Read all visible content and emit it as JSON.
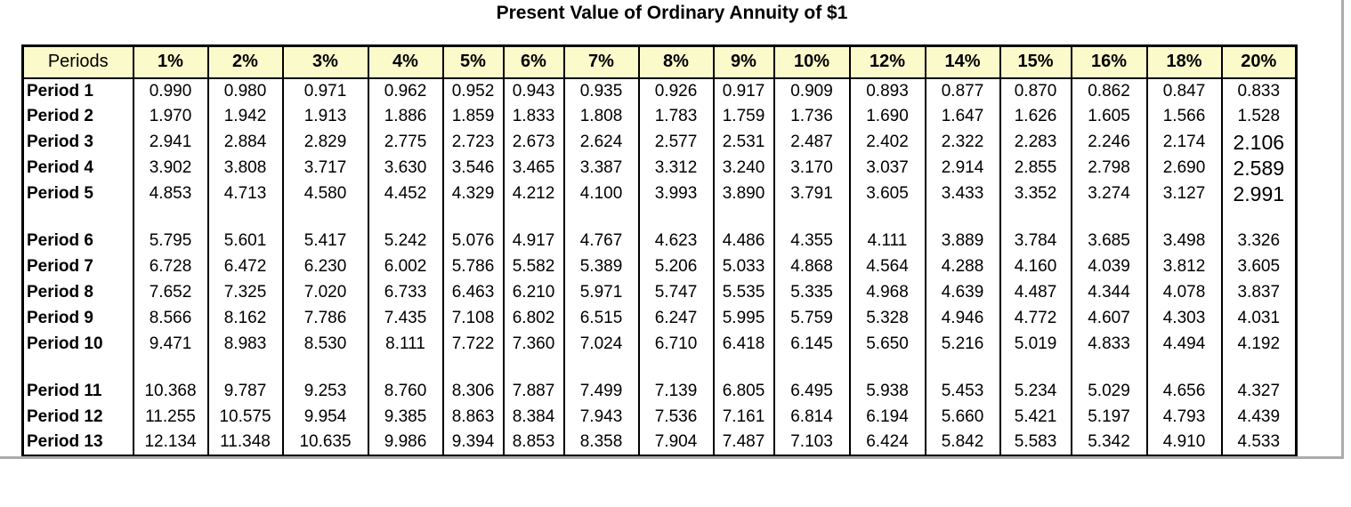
{
  "title": "Present Value of Ordinary Annuity of $1",
  "colors": {
    "header_bg": "#FBFACB",
    "grid_border": "#000000",
    "frame_line": "#ABABAB"
  },
  "table": {
    "header": [
      "Periods",
      "1%",
      "2%",
      "3%",
      "4%",
      "5%",
      "6%",
      "7%",
      "8%",
      "9%",
      "10%",
      "12%",
      "14%",
      "15%",
      "16%",
      "18%",
      "20%"
    ],
    "groups": [
      {
        "rows": [
          {
            "label": "Period 1",
            "values": [
              "0.990",
              "0.980",
              "0.971",
              "0.962",
              "0.952",
              "0.943",
              "0.935",
              "0.926",
              "0.917",
              "0.909",
              "0.893",
              "0.877",
              "0.870",
              "0.862",
              "0.847",
              "0.833"
            ]
          },
          {
            "label": "Period 2",
            "values": [
              "1.970",
              "1.942",
              "1.913",
              "1.886",
              "1.859",
              "1.833",
              "1.808",
              "1.783",
              "1.759",
              "1.736",
              "1.690",
              "1.647",
              "1.626",
              "1.605",
              "1.566",
              "1.528"
            ]
          },
          {
            "label": "Period 3",
            "values": [
              "2.941",
              "2.884",
              "2.829",
              "2.775",
              "2.723",
              "2.673",
              "2.624",
              "2.577",
              "2.531",
              "2.487",
              "2.402",
              "2.322",
              "2.283",
              "2.246",
              "2.174",
              "2.106"
            ]
          },
          {
            "label": "Period 4",
            "values": [
              "3.902",
              "3.808",
              "3.717",
              "3.630",
              "3.546",
              "3.465",
              "3.387",
              "3.312",
              "3.240",
              "3.170",
              "3.037",
              "2.914",
              "2.855",
              "2.798",
              "2.690",
              "2.589"
            ]
          },
          {
            "label": "Period 5",
            "values": [
              "4.853",
              "4.713",
              "4.580",
              "4.452",
              "4.329",
              "4.212",
              "4.100",
              "3.993",
              "3.890",
              "3.791",
              "3.605",
              "3.433",
              "3.352",
              "3.274",
              "3.127",
              "2.991"
            ]
          }
        ]
      },
      {
        "rows": [
          {
            "label": "Period 6",
            "values": [
              "5.795",
              "5.601",
              "5.417",
              "5.242",
              "5.076",
              "4.917",
              "4.767",
              "4.623",
              "4.486",
              "4.355",
              "4.111",
              "3.889",
              "3.784",
              "3.685",
              "3.498",
              "3.326"
            ]
          },
          {
            "label": "Period 7",
            "values": [
              "6.728",
              "6.472",
              "6.230",
              "6.002",
              "5.786",
              "5.582",
              "5.389",
              "5.206",
              "5.033",
              "4.868",
              "4.564",
              "4.288",
              "4.160",
              "4.039",
              "3.812",
              "3.605"
            ]
          },
          {
            "label": "Period 8",
            "values": [
              "7.652",
              "7.325",
              "7.020",
              "6.733",
              "6.463",
              "6.210",
              "5.971",
              "5.747",
              "5.535",
              "5.335",
              "4.968",
              "4.639",
              "4.487",
              "4.344",
              "4.078",
              "3.837"
            ]
          },
          {
            "label": "Period 9",
            "values": [
              "8.566",
              "8.162",
              "7.786",
              "7.435",
              "7.108",
              "6.802",
              "6.515",
              "6.247",
              "5.995",
              "5.759",
              "5.328",
              "4.946",
              "4.772",
              "4.607",
              "4.303",
              "4.031"
            ]
          },
          {
            "label": "Period 10",
            "values": [
              "9.471",
              "8.983",
              "8.530",
              "8.111",
              "7.722",
              "7.360",
              "7.024",
              "6.710",
              "6.418",
              "6.145",
              "5.650",
              "5.216",
              "5.019",
              "4.833",
              "4.494",
              "4.192"
            ]
          }
        ]
      },
      {
        "rows": [
          {
            "label": "Period 11",
            "values": [
              "10.368",
              "9.787",
              "9.253",
              "8.760",
              "8.306",
              "7.887",
              "7.499",
              "7.139",
              "6.805",
              "6.495",
              "5.938",
              "5.453",
              "5.234",
              "5.029",
              "4.656",
              "4.327"
            ]
          },
          {
            "label": "Period 12",
            "values": [
              "11.255",
              "10.575",
              "9.954",
              "9.385",
              "8.863",
              "8.384",
              "7.943",
              "7.536",
              "7.161",
              "6.814",
              "6.194",
              "5.660",
              "5.421",
              "5.197",
              "4.793",
              "4.439"
            ]
          },
          {
            "label": "Period 13",
            "values": [
              "12.134",
              "11.348",
              "10.635",
              "9.986",
              "9.394",
              "8.853",
              "8.358",
              "7.904",
              "7.487",
              "7.103",
              "6.424",
              "5.842",
              "5.583",
              "5.342",
              "4.910",
              "4.533"
            ]
          }
        ]
      }
    ]
  }
}
